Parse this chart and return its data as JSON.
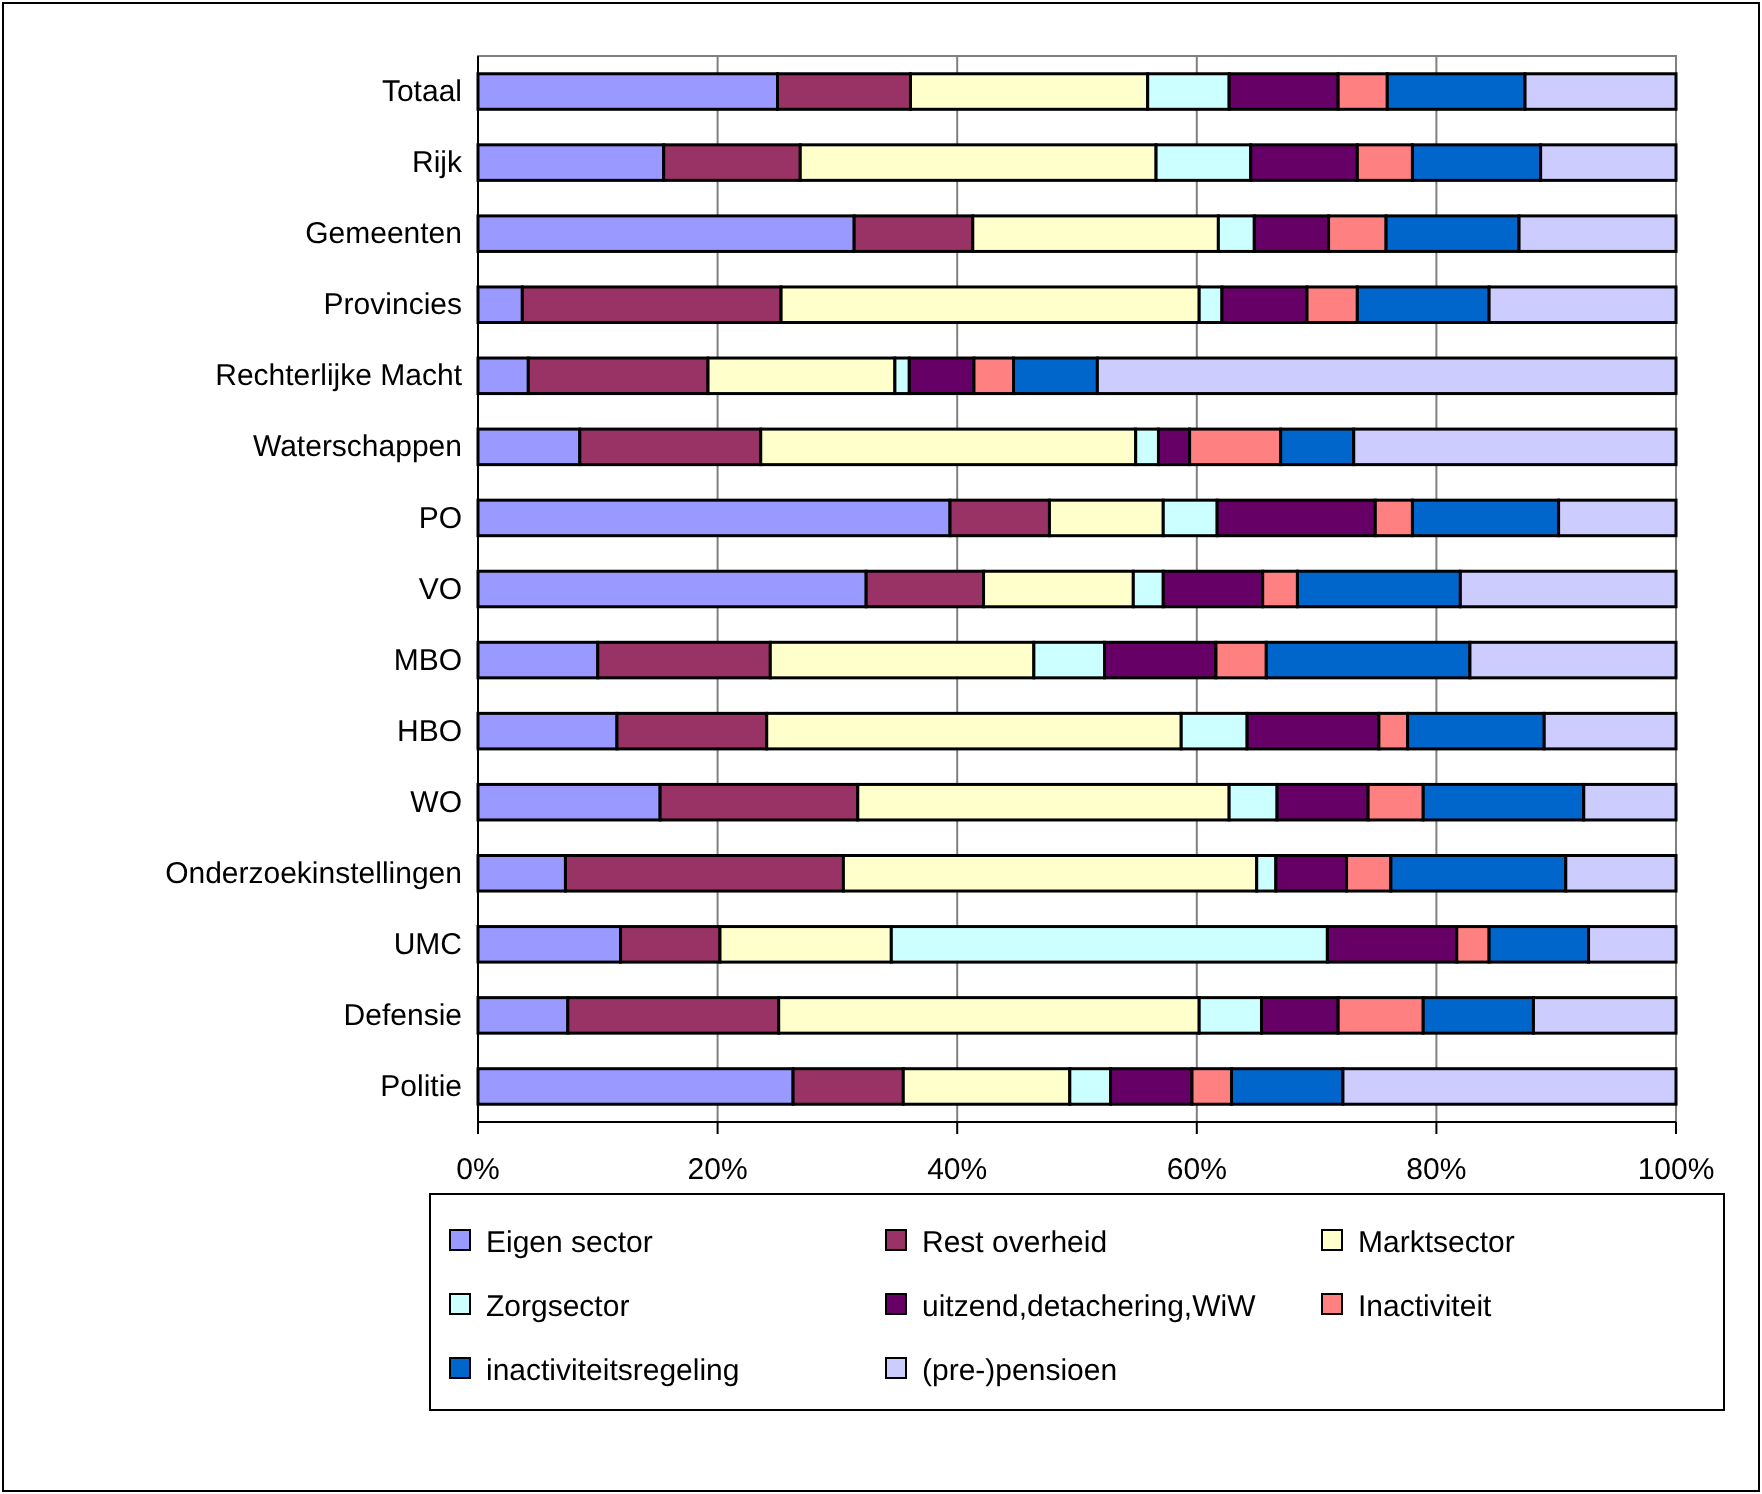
{
  "chart_data": {
    "type": "bar",
    "orientation": "horizontal",
    "stacked": true,
    "categories": [
      "Totaal",
      "Rijk",
      "Gemeenten",
      "Provincies",
      "Rechterlijke Macht",
      "Waterschappen",
      "PO",
      "VO",
      "MBO",
      "HBO",
      "WO",
      "Onderzoekinstellingen",
      "UMC",
      "Defensie",
      "Politie"
    ],
    "series": [
      {
        "name": "Eigen sector",
        "color": "#9999ff",
        "values": [
          25.0,
          15.5,
          31.4,
          3.7,
          4.2,
          8.5,
          39.4,
          32.4,
          10.0,
          11.6,
          15.2,
          7.3,
          11.9,
          7.5,
          26.3
        ]
      },
      {
        "name": "Rest overheid",
        "color": "#993366",
        "values": [
          11.1,
          11.4,
          9.9,
          21.6,
          15.0,
          15.1,
          8.3,
          9.8,
          14.4,
          12.5,
          16.5,
          23.2,
          8.3,
          17.6,
          9.2
        ]
      },
      {
        "name": "Marktsector",
        "color": "#ffffcc",
        "values": [
          19.8,
          29.7,
          20.5,
          34.9,
          15.6,
          31.3,
          9.5,
          12.5,
          22.0,
          34.6,
          31.0,
          34.5,
          14.3,
          35.1,
          13.9
        ]
      },
      {
        "name": "Zorgsector",
        "color": "#ccffff",
        "values": [
          6.8,
          7.9,
          3.0,
          1.9,
          1.2,
          1.9,
          4.5,
          2.5,
          5.9,
          5.5,
          4.0,
          1.6,
          36.4,
          5.2,
          3.4
        ]
      },
      {
        "name": "uitzend,detachering,WiW",
        "color": "#660066",
        "values": [
          9.1,
          8.9,
          6.2,
          7.1,
          5.4,
          2.6,
          13.2,
          8.3,
          9.3,
          11.0,
          7.6,
          5.9,
          10.8,
          6.4,
          6.8
        ]
      },
      {
        "name": "Inactiviteit",
        "color": "#ff8080",
        "values": [
          4.1,
          4.6,
          4.8,
          4.2,
          3.3,
          7.6,
          3.1,
          2.9,
          4.2,
          2.4,
          4.6,
          3.7,
          2.7,
          7.1,
          3.3
        ]
      },
      {
        "name": "inactiviteitsregeling",
        "color": "#0066cc",
        "values": [
          11.5,
          10.7,
          11.1,
          11.0,
          7.0,
          6.1,
          12.2,
          13.6,
          17.0,
          11.4,
          13.4,
          14.6,
          8.3,
          9.2,
          9.3
        ]
      },
      {
        "name": "(pre-)pensioen",
        "color": "#ccccff",
        "values": [
          12.6,
          11.3,
          13.1,
          15.6,
          48.3,
          26.9,
          9.8,
          18.0,
          17.2,
          11.0,
          7.7,
          9.2,
          7.3,
          11.9,
          27.8
        ]
      }
    ],
    "xlim": [
      0,
      100
    ],
    "xticks": [
      {
        "value": 0,
        "label": "0%"
      },
      {
        "value": 20,
        "label": "20%"
      },
      {
        "value": 40,
        "label": "40%"
      },
      {
        "value": 60,
        "label": "60%"
      },
      {
        "value": 80,
        "label": "80%"
      },
      {
        "value": 100,
        "label": "100%"
      }
    ],
    "grid": "x",
    "legend": "bottom"
  }
}
